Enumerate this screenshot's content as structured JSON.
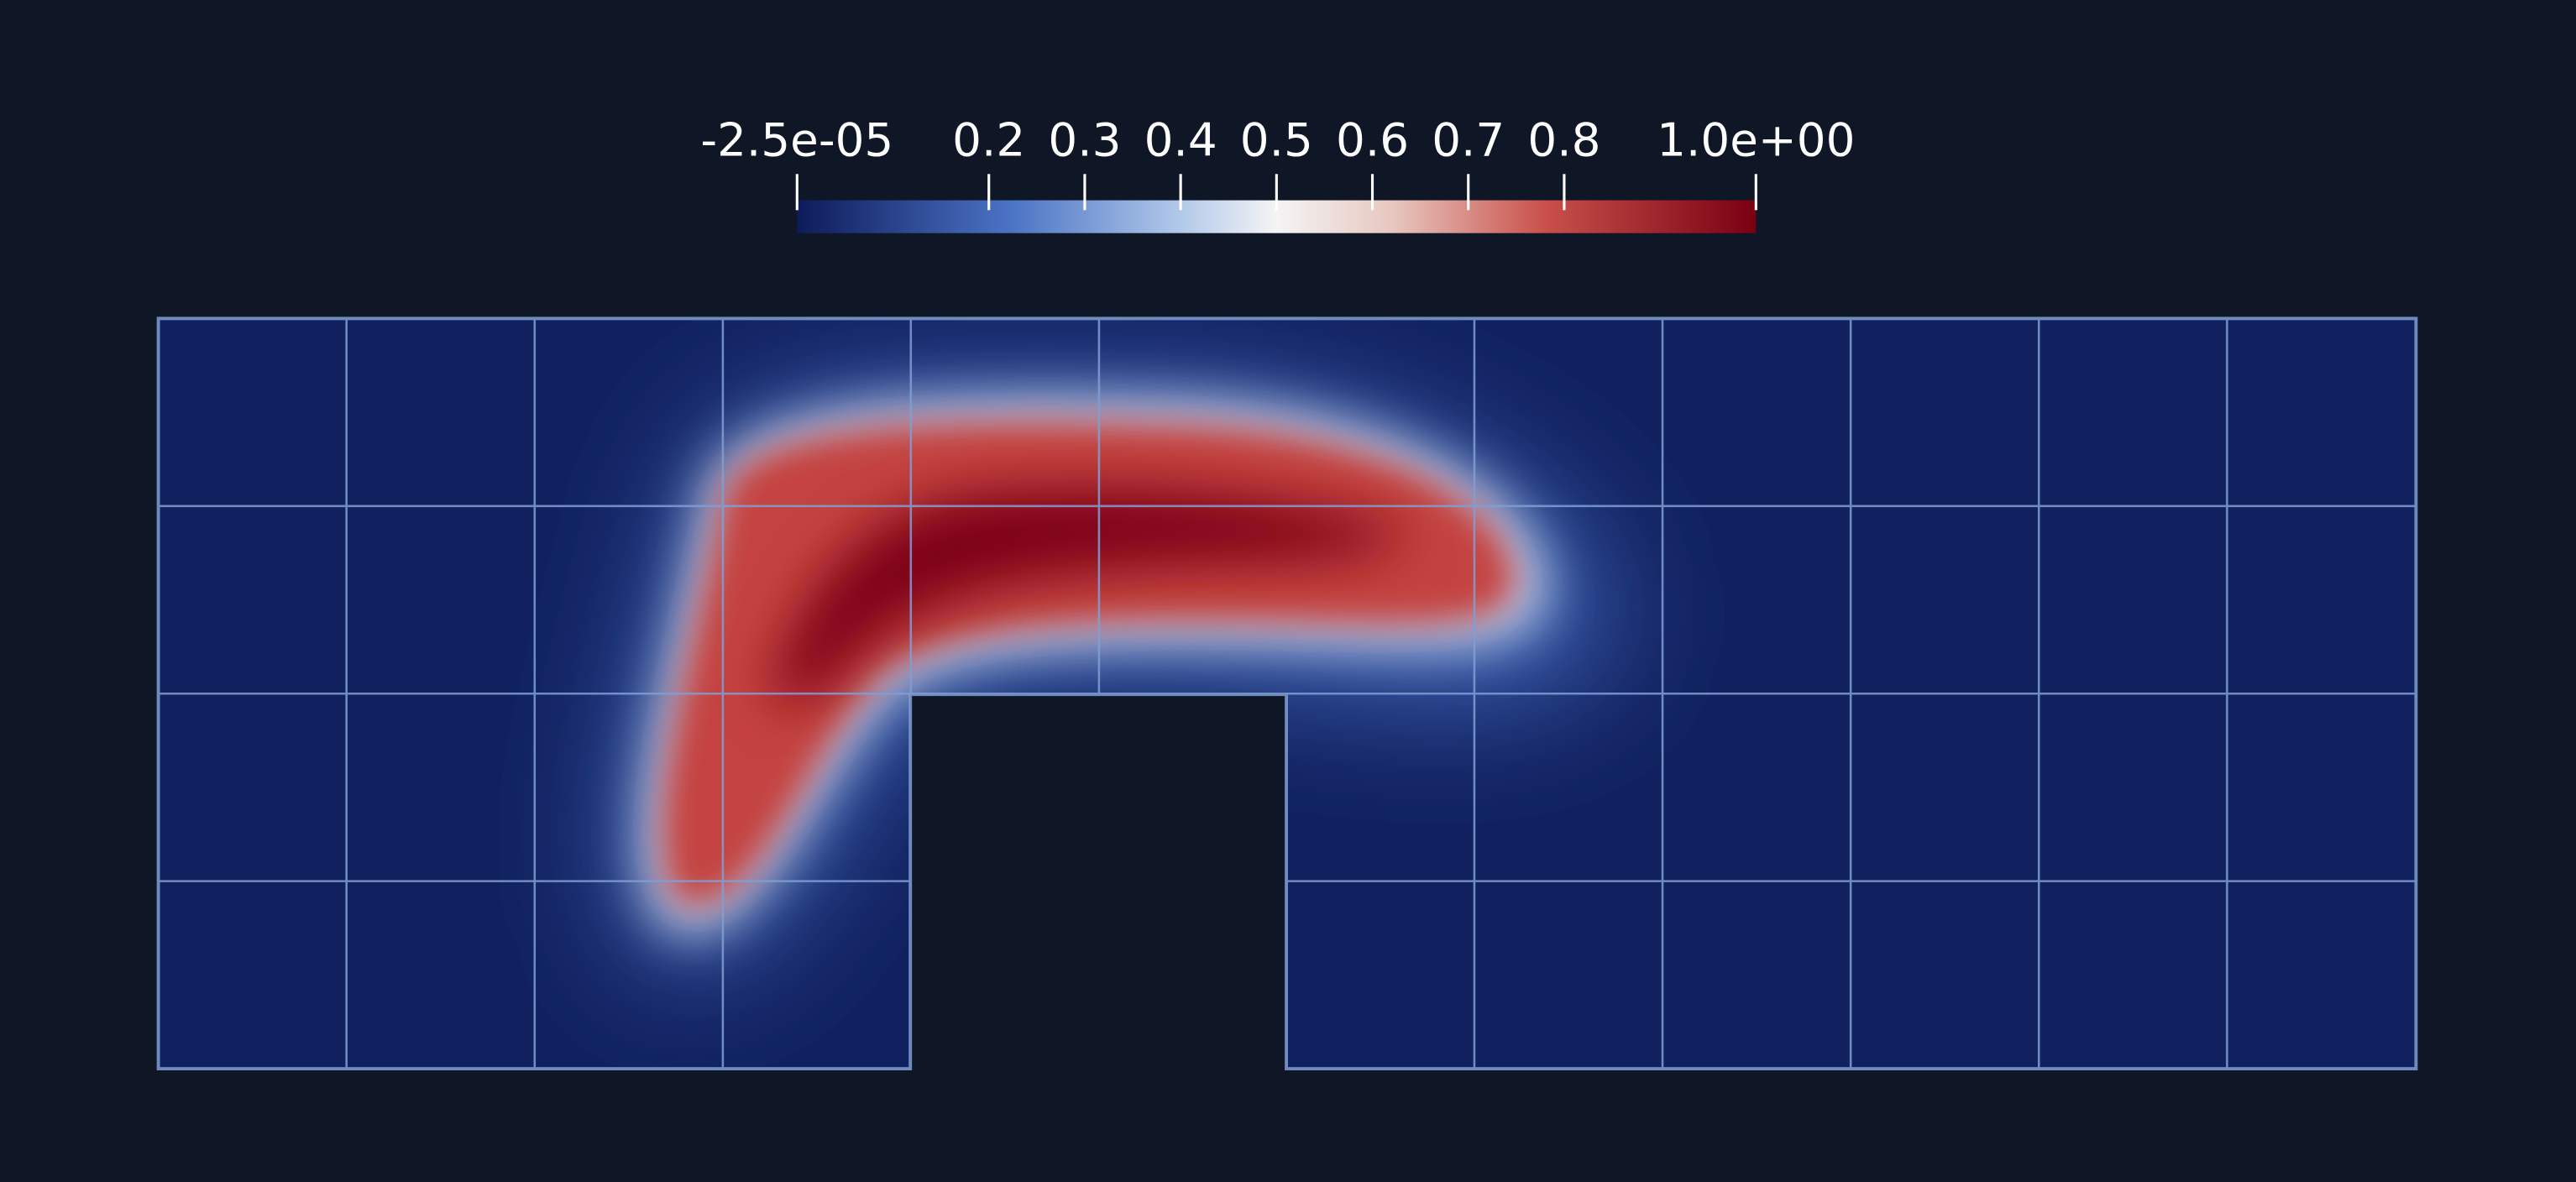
{
  "colorbar": {
    "range": [
      -2.5e-05,
      1
    ],
    "ticks": [
      {
        "value": -2.5e-05,
        "label": "-2.5e-05"
      },
      0.2,
      0.3,
      0.4,
      0.5,
      0.6,
      0.7,
      0.8,
      {
        "value": 1,
        "label": "1.0e+00"
      }
    ]
  }
}
